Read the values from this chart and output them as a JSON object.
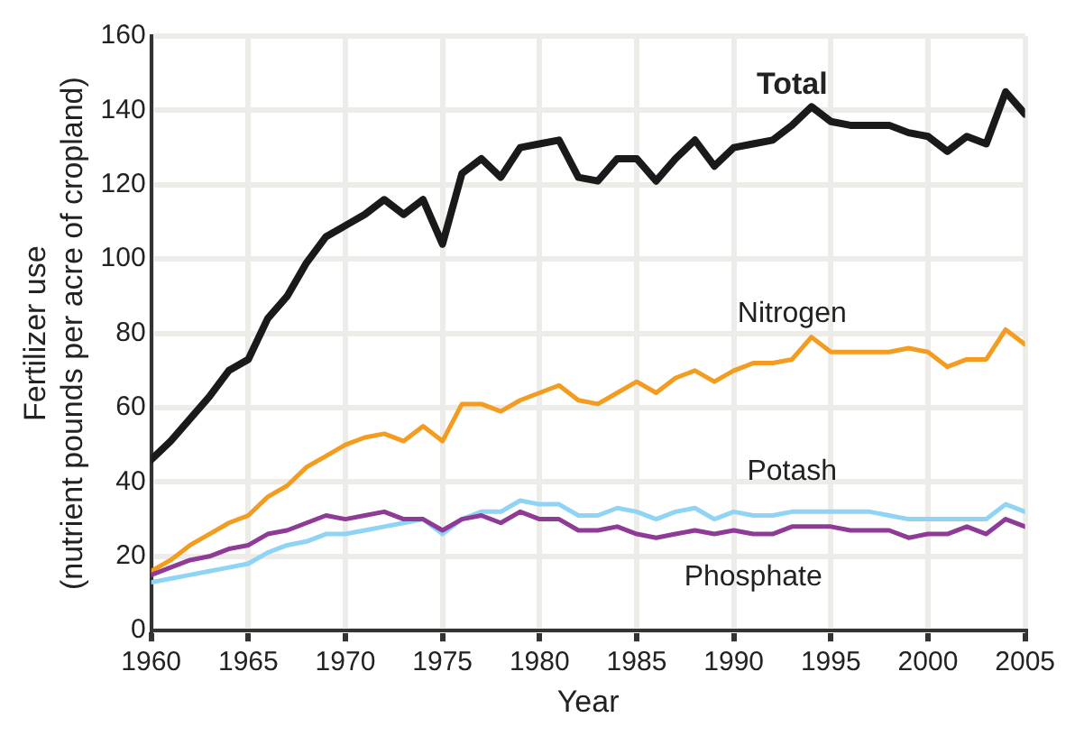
{
  "chart_data": {
    "type": "line",
    "xlabel": "Year",
    "ylabel": "Fertilizer use\n(nutrient pounds per acre of cropland)",
    "x": [
      1960,
      1961,
      1962,
      1963,
      1964,
      1965,
      1966,
      1967,
      1968,
      1969,
      1970,
      1971,
      1972,
      1973,
      1974,
      1975,
      1976,
      1977,
      1978,
      1979,
      1980,
      1981,
      1982,
      1983,
      1984,
      1985,
      1986,
      1987,
      1988,
      1989,
      1990,
      1991,
      1992,
      1993,
      1994,
      1995,
      1996,
      1997,
      1998,
      1999,
      2000,
      2001,
      2002,
      2003,
      2004,
      2005
    ],
    "series": [
      {
        "name": "Total",
        "color": "#1a1a1a",
        "values": [
          46,
          51,
          57,
          63,
          70,
          73,
          84,
          90,
          99,
          106,
          109,
          112,
          116,
          112,
          116,
          104,
          123,
          127,
          122,
          130,
          131,
          132,
          122,
          121,
          127,
          127,
          121,
          127,
          132,
          125,
          130,
          131,
          132,
          136,
          141,
          137,
          136,
          136,
          136,
          134,
          133,
          129,
          133,
          131,
          145,
          139
        ]
      },
      {
        "name": "Nitrogen",
        "color": "#f39c1f",
        "values": [
          16,
          19,
          23,
          26,
          29,
          31,
          36,
          39,
          44,
          47,
          50,
          52,
          53,
          51,
          55,
          51,
          61,
          61,
          59,
          62,
          64,
          66,
          62,
          61,
          64,
          67,
          64,
          68,
          70,
          67,
          70,
          72,
          72,
          73,
          79,
          75,
          75,
          75,
          75,
          76,
          75,
          71,
          73,
          73,
          81,
          77
        ]
      },
      {
        "name": "Potash",
        "color": "#8fd3f5",
        "values": [
          13,
          14,
          15,
          16,
          17,
          18,
          21,
          23,
          24,
          26,
          26,
          27,
          28,
          29,
          30,
          26,
          30,
          32,
          32,
          35,
          34,
          34,
          31,
          31,
          33,
          32,
          30,
          32,
          33,
          30,
          32,
          31,
          31,
          32,
          32,
          32,
          32,
          32,
          31,
          30,
          30,
          30,
          30,
          30,
          34,
          32
        ]
      },
      {
        "name": "Phosphate",
        "color": "#8e3a96",
        "values": [
          15,
          17,
          19,
          20,
          22,
          23,
          26,
          27,
          29,
          31,
          30,
          31,
          32,
          30,
          30,
          27,
          30,
          31,
          29,
          32,
          30,
          30,
          27,
          27,
          28,
          26,
          25,
          26,
          27,
          26,
          27,
          26,
          26,
          28,
          28,
          28,
          27,
          27,
          27,
          25,
          26,
          26,
          28,
          26,
          30,
          28
        ]
      }
    ],
    "xlim": [
      1960,
      2005
    ],
    "xticks": [
      1960,
      1965,
      1970,
      1975,
      1980,
      1985,
      1990,
      1995,
      2000,
      2005
    ],
    "ylim": [
      0,
      160
    ],
    "yticks": [
      0,
      20,
      40,
      60,
      80,
      100,
      120,
      140,
      160
    ],
    "grid": true,
    "legend": false,
    "marker": "none",
    "line_style": "solid"
  }
}
